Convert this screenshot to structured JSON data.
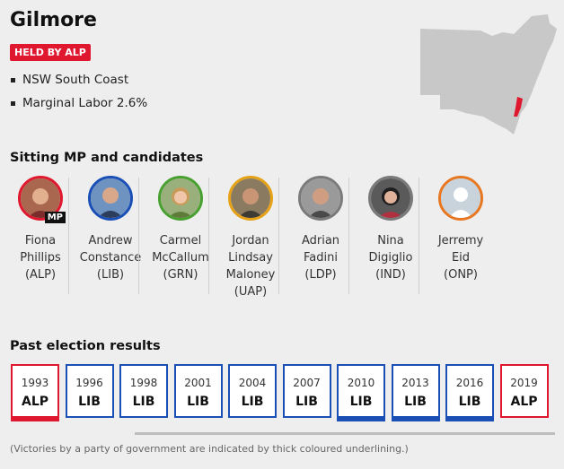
{
  "seat": {
    "name": "Gilmore",
    "badge": "HELD BY ALP",
    "facts": [
      "NSW South Coast",
      "Marginal Labor 2.6%"
    ]
  },
  "candidates_heading": "Sitting MP and candidates",
  "candidates": [
    {
      "name": "Fiona\nPhillips\n(ALP)",
      "color": "#e0182f",
      "mp": "MP"
    },
    {
      "name": "Andrew\nConstance\n(LIB)",
      "color": "#1a4fb5"
    },
    {
      "name": "Carmel\nMcCallum\n(GRN)",
      "color": "#47a02f"
    },
    {
      "name": "Jordan\nLindsay\nMaloney\n(UAP)",
      "color": "#e6a216"
    },
    {
      "name": "Adrian\nFadini\n(LDP)",
      "color": "#7a7a7a"
    },
    {
      "name": "Nina\nDigiglio\n(IND)",
      "color": "#7a7a7a"
    },
    {
      "name": "Jerremy\nEid\n(ONP)",
      "color": "#e87722"
    }
  ],
  "results_heading": "Past election results",
  "results": [
    {
      "year": "1993",
      "party": "ALP"
    },
    {
      "year": "1996",
      "party": "LIB"
    },
    {
      "year": "1998",
      "party": "LIB"
    },
    {
      "year": "2001",
      "party": "LIB"
    },
    {
      "year": "2004",
      "party": "LIB"
    },
    {
      "year": "2007",
      "party": "LIB"
    },
    {
      "year": "2010",
      "party": "LIB"
    },
    {
      "year": "2013",
      "party": "LIB"
    },
    {
      "year": "2016",
      "party": "LIB"
    },
    {
      "year": "2019",
      "party": "ALP"
    }
  ],
  "footnote": "(Victories by a party of government are indicated by thick coloured underlining.)",
  "colors": {
    "alp": "#e0182f",
    "lib": "#1a4fb5",
    "map_fill": "#c8c8c8",
    "highlight": "#e0182f"
  }
}
